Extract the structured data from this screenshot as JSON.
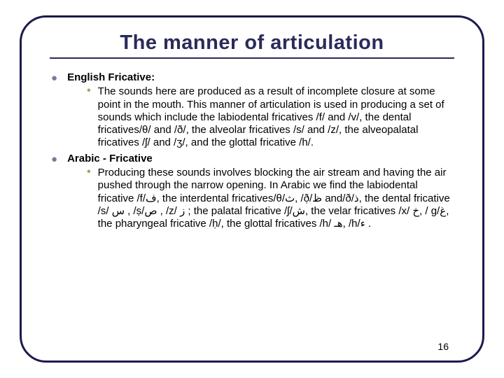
{
  "title": "The manner of articulation",
  "sections": [
    {
      "heading": "English Fricative:",
      "body": "The sounds here are produced as a result of incomplete closure at some point in the mouth. This manner of articulation is used in producing a set of sounds which include the labiodental fricatives /f/ and /v/, the dental fricatives/θ/ and /ð/, the alveolar fricatives /s/ and /z/, the alveopalatal fricatives /ʃ/ and /ʒ/, and the glottal fricative /h/."
    },
    {
      "heading": "Arabic - Fricative",
      "body": "Producing these sounds involves blocking the air stream and having the air pushed through the narrow opening. In Arabic we find the labiodental fricative /f/ف, the interdental fricatives/θ/ث, /ð̣/ظ and/ð/ذ, the dental fricative /s/ س , /ṣ/ص , /z/ ز ; the palatal fricative /ʃ/ش, the velar fricatives /x/ خ, / g/غ, the pharyngeal fricative /ḥ/, the glottal fricatives /h/ هـ, /h/ء ."
    }
  ],
  "pageNumber": "16",
  "colors": {
    "frameBorder": "#1a1a4d",
    "titleColor": "#2a2a5a",
    "topBullet": "#7a7a99",
    "subBullet": "#b0a060"
  }
}
